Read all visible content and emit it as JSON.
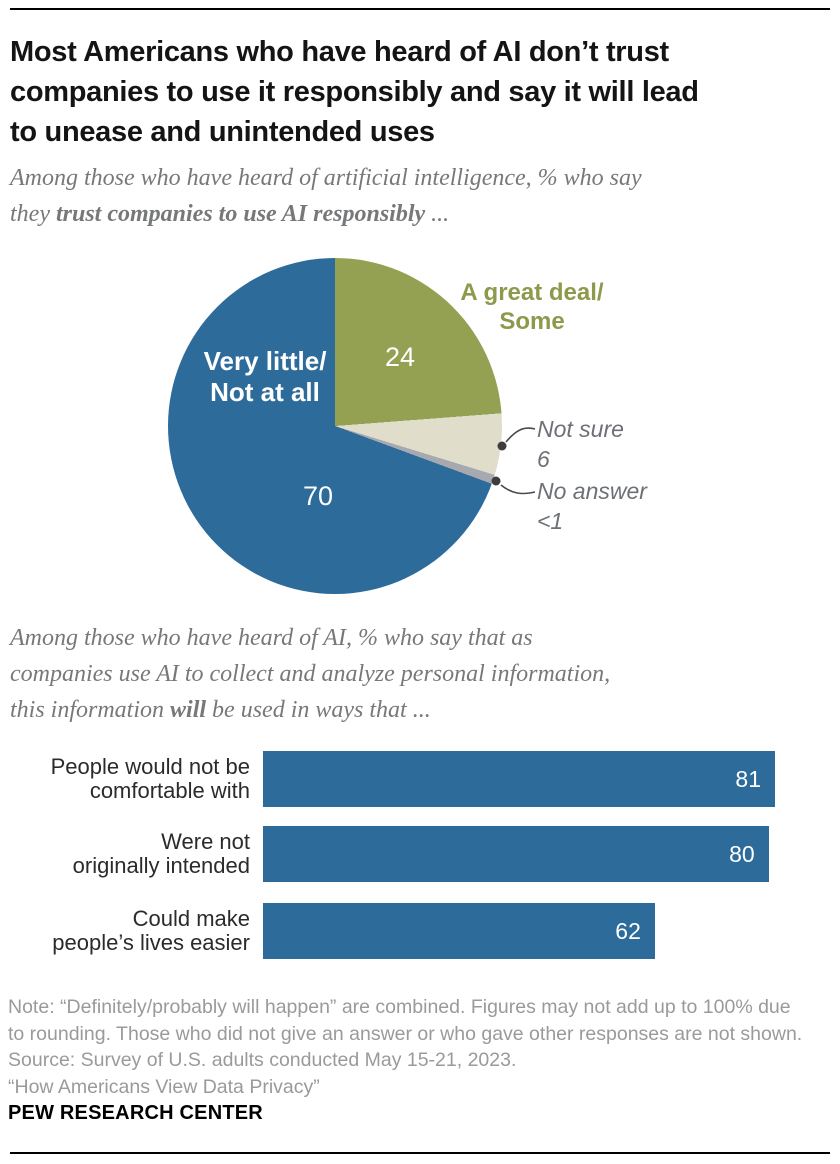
{
  "header": {
    "title_lines": [
      "Most Americans who have heard of AI don’t trust",
      "companies to use it responsibly and say it will lead",
      "to unease and unintended uses"
    ]
  },
  "pie_intro": {
    "line1": "Among those who have heard of artificial intelligence, % who say",
    "line2_prefix": "they ",
    "line2_bold": "trust companies to use AI responsibly",
    "line2_suffix": " ..."
  },
  "bar_intro": {
    "line1": "Among those who have heard of AI, % who say that as",
    "line2": "companies use AI to collect and analyze personal information,",
    "line3_prefix": "this information ",
    "line3_bold": "will",
    "line3_suffix": " be used in ways that ..."
  },
  "chart_data": [
    {
      "type": "pie",
      "title": "Among those who have heard of artificial intelligence, % who say they trust companies to use AI responsibly ...",
      "start_angle_deg": 0,
      "direction": "clockwise",
      "segments": [
        {
          "label": "A great deal/Some",
          "label_lines": [
            "A great deal/",
            "Some"
          ],
          "value": 24,
          "display": "24",
          "color": "#94A152"
        },
        {
          "label": "Not sure",
          "label_lines": [
            "Not sure",
            "6"
          ],
          "value": 6,
          "display": "6",
          "color": "#E0DDCA"
        },
        {
          "label": "No answer",
          "label_lines": [
            "No answer",
            "<1"
          ],
          "value": 0.9,
          "display": "<1",
          "color": "#A6A9B0"
        },
        {
          "label": "Very little/Not at all",
          "label_lines": [
            "Very little/",
            "Not at all"
          ],
          "value": 70,
          "display": "70",
          "color": "#2D6B9B"
        }
      ]
    },
    {
      "type": "bar",
      "orientation": "horizontal",
      "title": "Among those who have heard of AI, % who say that as companies use AI to collect and analyze personal information, this information will be used in ways that ...",
      "xlim": [
        0,
        100
      ],
      "bar_color": "#2D6B9B",
      "categories": [
        "People would not be comfortable with",
        "Were not originally intended",
        "Could make people's lives easier"
      ],
      "values": [
        81,
        80,
        62
      ],
      "rows": [
        {
          "lines": [
            "People would not be",
            "comfortable with"
          ],
          "value": 81,
          "display": "81"
        },
        {
          "lines": [
            "Were not",
            "originally intended"
          ],
          "value": 80,
          "display": "80"
        },
        {
          "lines": [
            "Could make",
            "people’s lives easier"
          ],
          "value": 62,
          "display": "62"
        }
      ]
    }
  ],
  "footer": {
    "note_lines": [
      "Note: “Definitely/probably will happen” are combined. Figures may not add up to 100% due",
      "to rounding. Those who did not give an answer or who gave other responses are not shown.",
      "Source: Survey of U.S. adults conducted May 15-21, 2023.",
      "“How Americans View Data Privacy”"
    ],
    "brand": "PEW RESEARCH CENTER"
  }
}
